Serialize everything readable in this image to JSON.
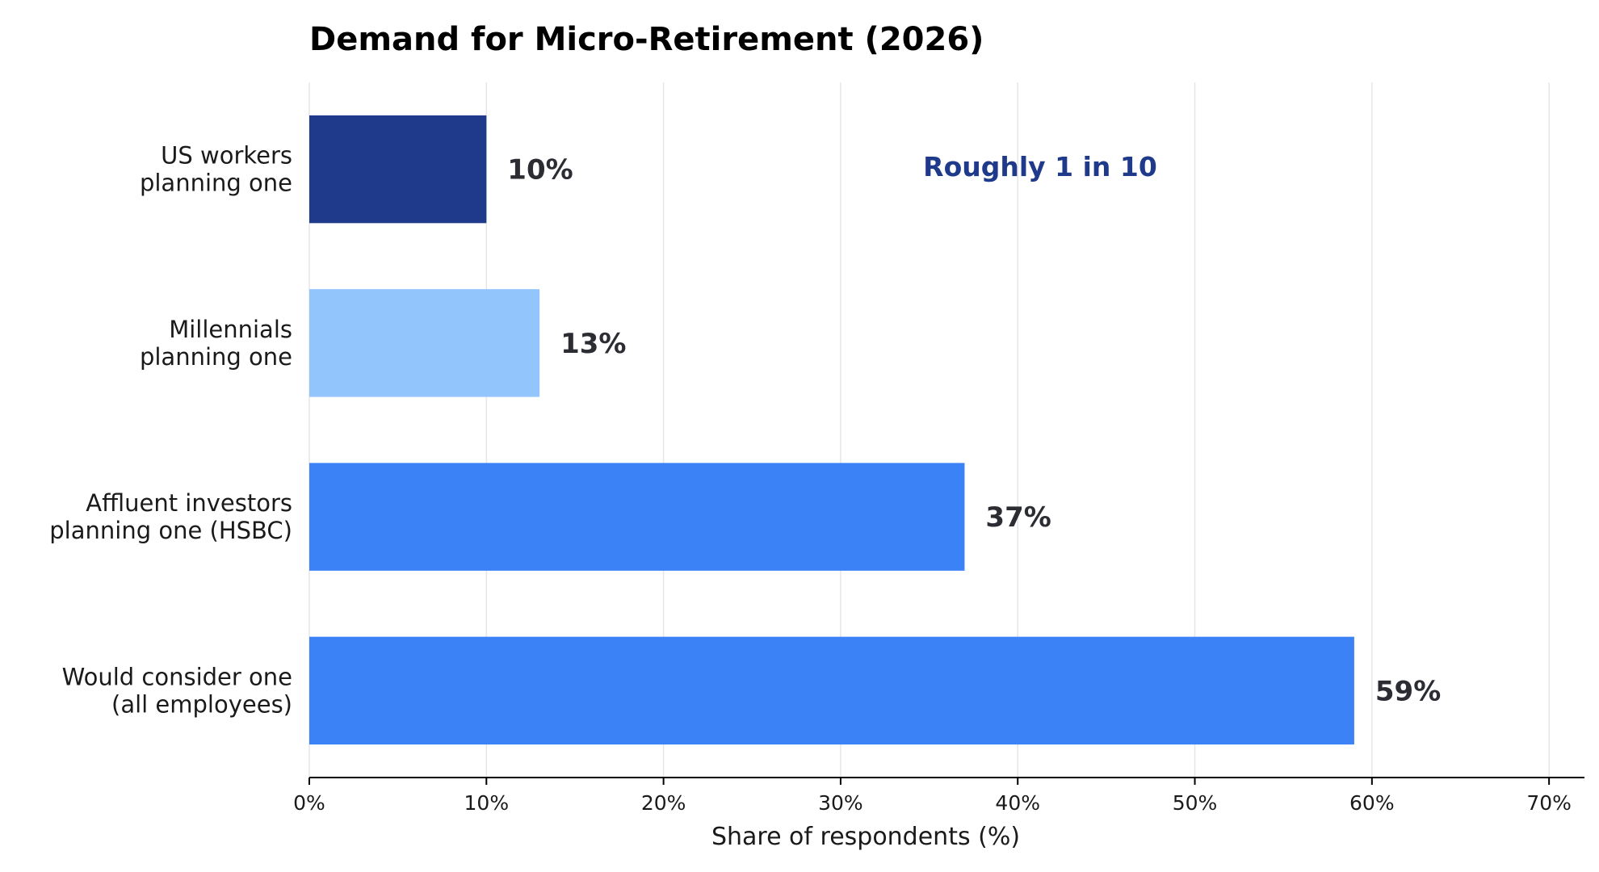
{
  "chart_data": {
    "type": "bar",
    "orientation": "horizontal",
    "title": "Demand for Micro-Retirement (2026)",
    "xlabel": "Share of respondents (%)",
    "ylabel": "",
    "xlim": [
      0,
      72
    ],
    "x_ticks": [
      0,
      10,
      20,
      30,
      40,
      50,
      60,
      70
    ],
    "x_tick_labels": [
      "0%",
      "10%",
      "20%",
      "30%",
      "40%",
      "50%",
      "60%",
      "70%"
    ],
    "grid": "vertical",
    "categories": [
      [
        "US workers",
        "planning one"
      ],
      [
        "Millennials",
        "planning one"
      ],
      [
        "Affluent investors",
        "planning one (HSBC)"
      ],
      [
        "Would consider one",
        "(all employees)"
      ]
    ],
    "values": [
      10,
      13,
      37,
      59
    ],
    "value_labels": [
      "10%",
      "13%",
      "37%",
      "59%"
    ],
    "bar_colors": [
      "#1f3a8a",
      "#93c5fd",
      "#3b82f6",
      "#3b82f6"
    ],
    "annotation": {
      "text": "Roughly 1 in 10",
      "color": "#1f3a8a"
    }
  }
}
